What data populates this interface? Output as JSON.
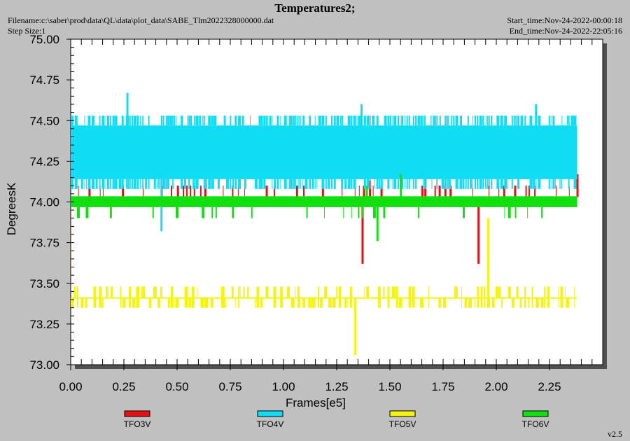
{
  "header": {
    "title": "Temperatures2;",
    "filename": "Filename:c:\\saber\\prod\\data\\QL\\data\\plot_data\\SABE_Tlm2022328000000.dat",
    "step_size": "Step Size:1",
    "start_time": "Start_time:Nov-24-2022-00:00:18",
    "end_time": "End_time:Nov-24-2022-22:05:16"
  },
  "version": "v2.5",
  "chart_data": {
    "type": "line",
    "xlabel": "Frames[e5]",
    "ylabel": "DegreesK",
    "xlim": [
      0,
      2.5
    ],
    "ylim": [
      73.0,
      75.0
    ],
    "x_ticks": [
      "0.00",
      "0.25",
      "0.50",
      "0.75",
      "1.00",
      "1.25",
      "1.50",
      "1.75",
      "2.00",
      "2.25"
    ],
    "y_ticks": [
      "73.00",
      "73.25",
      "73.50",
      "73.75",
      "74.00",
      "74.25",
      "74.50",
      "74.75",
      "75.00"
    ],
    "grid": false,
    "legend_position": "bottom",
    "x_range": [
      0,
      2.38
    ],
    "series": [
      {
        "name": "TFO3V",
        "color": "#e81010",
        "values_band": [
          74.03,
          74.1
        ],
        "typical_value": 74.03,
        "spikes": [
          [
            1.37,
            73.62
          ],
          [
            1.915,
            73.62
          ],
          [
            1.405,
            74.13
          ],
          [
            1.665,
            74.17
          ],
          [
            2.38,
            74.17
          ]
        ]
      },
      {
        "name": "TFO4V",
        "color": "#10dcf4",
        "values_band": [
          74.1,
          74.53
        ],
        "typical_value": 74.33,
        "spikes": [
          [
            0.265,
            74.67
          ],
          [
            1.365,
            74.6
          ],
          [
            2.185,
            74.6
          ],
          [
            0.425,
            73.82
          ]
        ]
      },
      {
        "name": "TFO5V",
        "color": "#f4f410",
        "values_band": [
          73.35,
          73.48
        ],
        "typical_value": 73.41,
        "spikes": [
          [
            1.335,
            73.06
          ],
          [
            1.96,
            73.9
          ]
        ]
      },
      {
        "name": "TFO6V",
        "color": "#10e010",
        "values_band": [
          73.97,
          74.04
        ],
        "typical_value": 74.0,
        "spikes": [
          [
            1.44,
            73.76
          ],
          [
            1.55,
            74.17
          ],
          [
            1.39,
            74.1
          ]
        ]
      }
    ]
  }
}
